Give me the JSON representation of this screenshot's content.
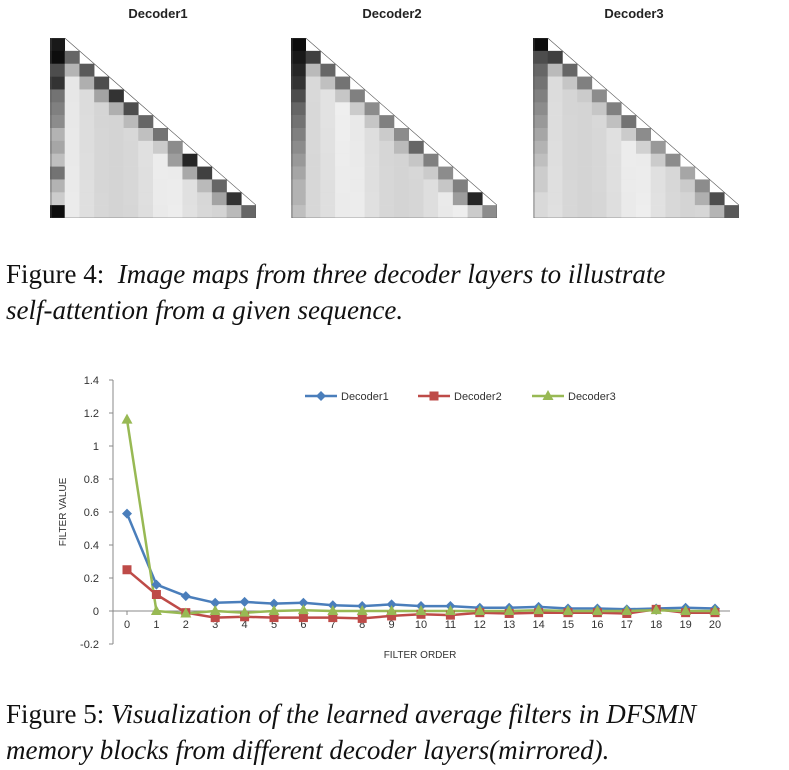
{
  "figure4": {
    "titles": [
      "Decoder1",
      "Decoder2",
      "Decoder3"
    ],
    "caption_label": "Figure 4:",
    "caption_text_line1": "Image maps from three decoder layers to illustrate",
    "caption_text_line2": "self-attention from a given sequence.",
    "heatmaps": [
      {
        "name": "Decoder1",
        "n": 14,
        "firstcol": [
          0.9,
          0.95,
          0.7,
          0.8,
          0.55,
          0.5,
          0.45,
          0.3,
          0.35,
          0.25,
          0.55,
          0.3,
          0.2,
          0.95
        ],
        "diag": [
          0.9,
          0.6,
          0.65,
          0.7,
          0.8,
          0.7,
          0.6,
          0.55,
          0.45,
          0.85,
          0.75,
          0.6,
          0.8,
          0.6
        ]
      },
      {
        "name": "Decoder2",
        "n": 14,
        "firstcol": [
          0.95,
          0.9,
          0.85,
          0.8,
          0.7,
          0.6,
          0.55,
          0.5,
          0.45,
          0.4,
          0.35,
          0.3,
          0.3,
          0.25
        ],
        "diag": [
          0.9,
          0.75,
          0.6,
          0.55,
          0.5,
          0.45,
          0.5,
          0.45,
          0.6,
          0.5,
          0.45,
          0.5,
          0.85,
          0.45
        ]
      },
      {
        "name": "Decoder3",
        "n": 14,
        "firstcol": [
          0.95,
          0.7,
          0.6,
          0.55,
          0.5,
          0.45,
          0.4,
          0.35,
          0.3,
          0.25,
          0.2,
          0.2,
          0.15,
          0.15
        ],
        "diag": [
          0.95,
          0.75,
          0.6,
          0.5,
          0.45,
          0.5,
          0.55,
          0.45,
          0.4,
          0.45,
          0.35,
          0.45,
          0.7,
          0.65
        ]
      }
    ]
  },
  "figure5": {
    "caption_label": "Figure 5:",
    "caption_text_line1": "Visualization of the learned average filters in DFSMN",
    "caption_text_line2": "memory blocks from different decoder layers(mirrored)."
  },
  "chart_data": {
    "type": "line",
    "xlabel": "FILTER ORDER",
    "ylabel": "FILTER VALUE",
    "ylim": [
      -0.2,
      1.4
    ],
    "yticks": [
      -0.2,
      0,
      0.2,
      0.4,
      0.6,
      0.8,
      1,
      1.2,
      1.4
    ],
    "ytick_labels": [
      "-0.2",
      "0",
      "0.2",
      "0.4",
      "0.6",
      "0.8",
      "1",
      "1.2",
      "1.4"
    ],
    "x": [
      0,
      1,
      2,
      3,
      4,
      5,
      6,
      7,
      8,
      9,
      10,
      11,
      12,
      13,
      14,
      15,
      16,
      17,
      18,
      19,
      20
    ],
    "x_labels": [
      "0",
      "1",
      "2",
      "3",
      "4",
      "5",
      "6",
      "7",
      "8",
      "9",
      "10",
      "11",
      "12",
      "13",
      "14",
      "15",
      "16",
      "17",
      "18",
      "19",
      "20"
    ],
    "legend_position": "top-right",
    "grid": false,
    "series": [
      {
        "name": "Decoder1",
        "color": "#4a7ebb",
        "marker": "diamond",
        "values": [
          0.59,
          0.16,
          0.09,
          0.05,
          0.055,
          0.045,
          0.05,
          0.035,
          0.03,
          0.04,
          0.03,
          0.03,
          0.02,
          0.02,
          0.025,
          0.015,
          0.015,
          0.01,
          0.015,
          0.02,
          0.015
        ]
      },
      {
        "name": "Decoder2",
        "color": "#be4b48",
        "marker": "square",
        "values": [
          0.25,
          0.1,
          -0.01,
          -0.04,
          -0.035,
          -0.04,
          -0.04,
          -0.04,
          -0.045,
          -0.03,
          -0.02,
          -0.025,
          -0.01,
          -0.015,
          -0.01,
          -0.01,
          -0.01,
          -0.015,
          0.01,
          -0.01,
          -0.01
        ]
      },
      {
        "name": "Decoder3",
        "color": "#98b954",
        "marker": "triangle",
        "values": [
          1.16,
          0.0,
          -0.015,
          0.0,
          -0.01,
          0.0,
          0.005,
          0.0,
          0.0,
          0.0,
          0.0,
          0.0,
          0.0,
          0.0,
          0.005,
          0.0,
          0.0,
          0.0,
          0.005,
          0.0,
          0.0
        ]
      }
    ]
  }
}
